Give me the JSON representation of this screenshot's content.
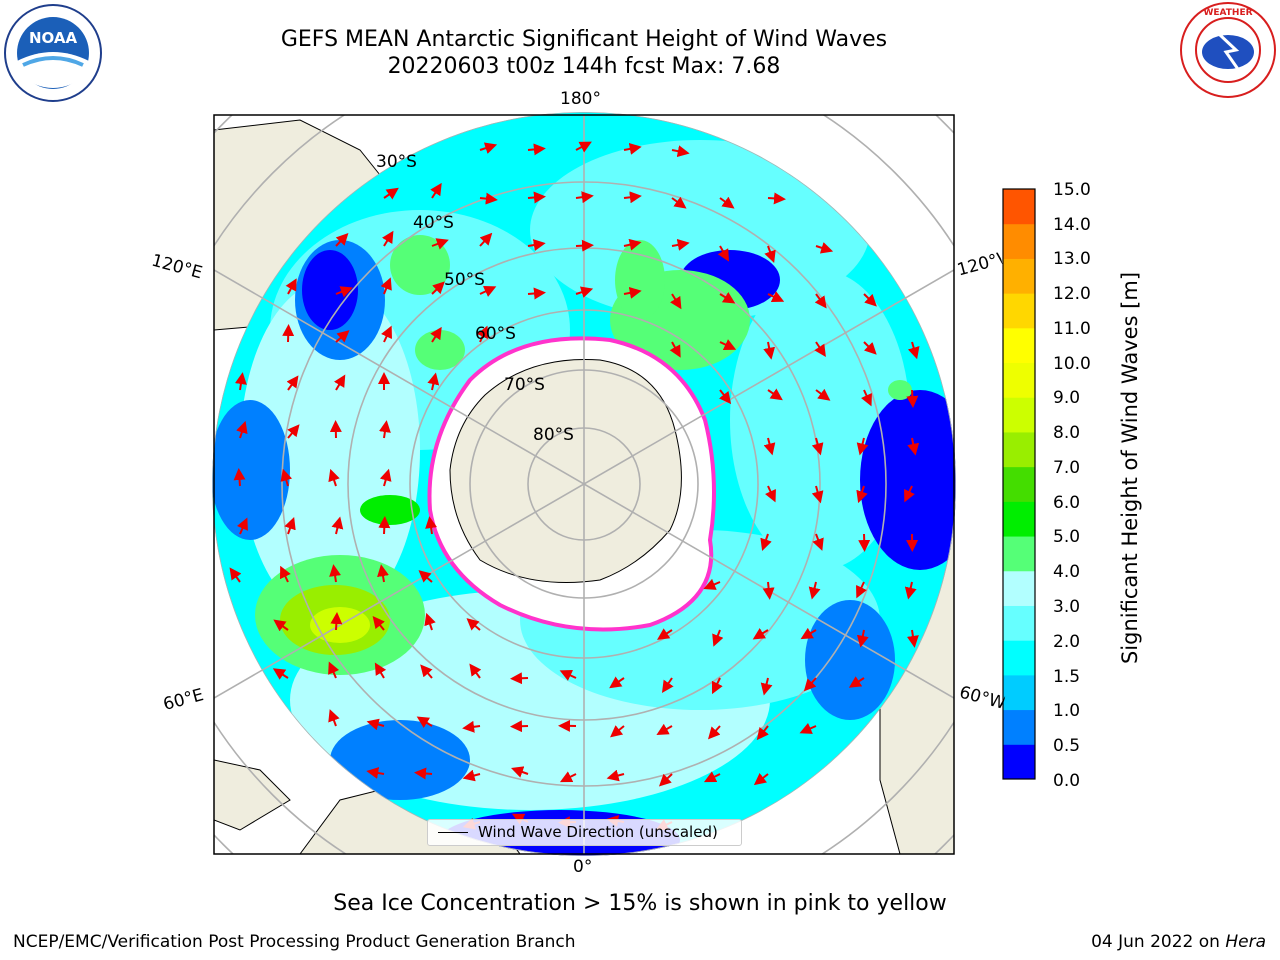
{
  "title": {
    "line1": "GEFS MEAN Antarctic Significant Height of Wind Waves",
    "line2": "20220603 t00z 144h fcst   Max: 7.68"
  },
  "map": {
    "projection": "south-polar-stereographic",
    "longitude_labels": [
      "180°",
      "120°E",
      "120°W",
      "60°E",
      "60°W",
      "0°"
    ],
    "latitude_labels": [
      "30°S",
      "40°S",
      "50°S",
      "60°S",
      "70°S",
      "80°S"
    ],
    "legend_label": "Wind Wave Direction (unscaled)"
  },
  "colorbar": {
    "label": "Significant Height of Wind Waves [m]",
    "ticks": [
      "15.0",
      "14.0",
      "13.0",
      "12.0",
      "11.0",
      "10.0",
      "9.0",
      "8.0",
      "7.0",
      "6.0",
      "5.0",
      "4.0",
      "3.0",
      "2.0",
      "1.5",
      "1.0",
      "0.5",
      "0.0"
    ],
    "colors": [
      "#0000ff",
      "#0080ff",
      "#00ccff",
      "#00ffff",
      "#66ffff",
      "#b2ffff",
      "#55ff77",
      "#00ee00",
      "#44dd00",
      "#99ee00",
      "#ccff00",
      "#eeff00",
      "#ffff00",
      "#ffd700",
      "#ffb000",
      "#ff8c00",
      "#ff5500",
      "#ff1500",
      "#ff0000"
    ]
  },
  "sea_ice_note": "Sea Ice Concentration > 15% is shown in pink to yellow",
  "footer": {
    "credit": "NCEP/EMC/Verification Post Processing Product Generation Branch",
    "date": "04 Jun 2022 on",
    "host": "Hera"
  },
  "logos": {
    "left": "NOAA",
    "right": "NATIONAL WEATHER SERVICE"
  }
}
